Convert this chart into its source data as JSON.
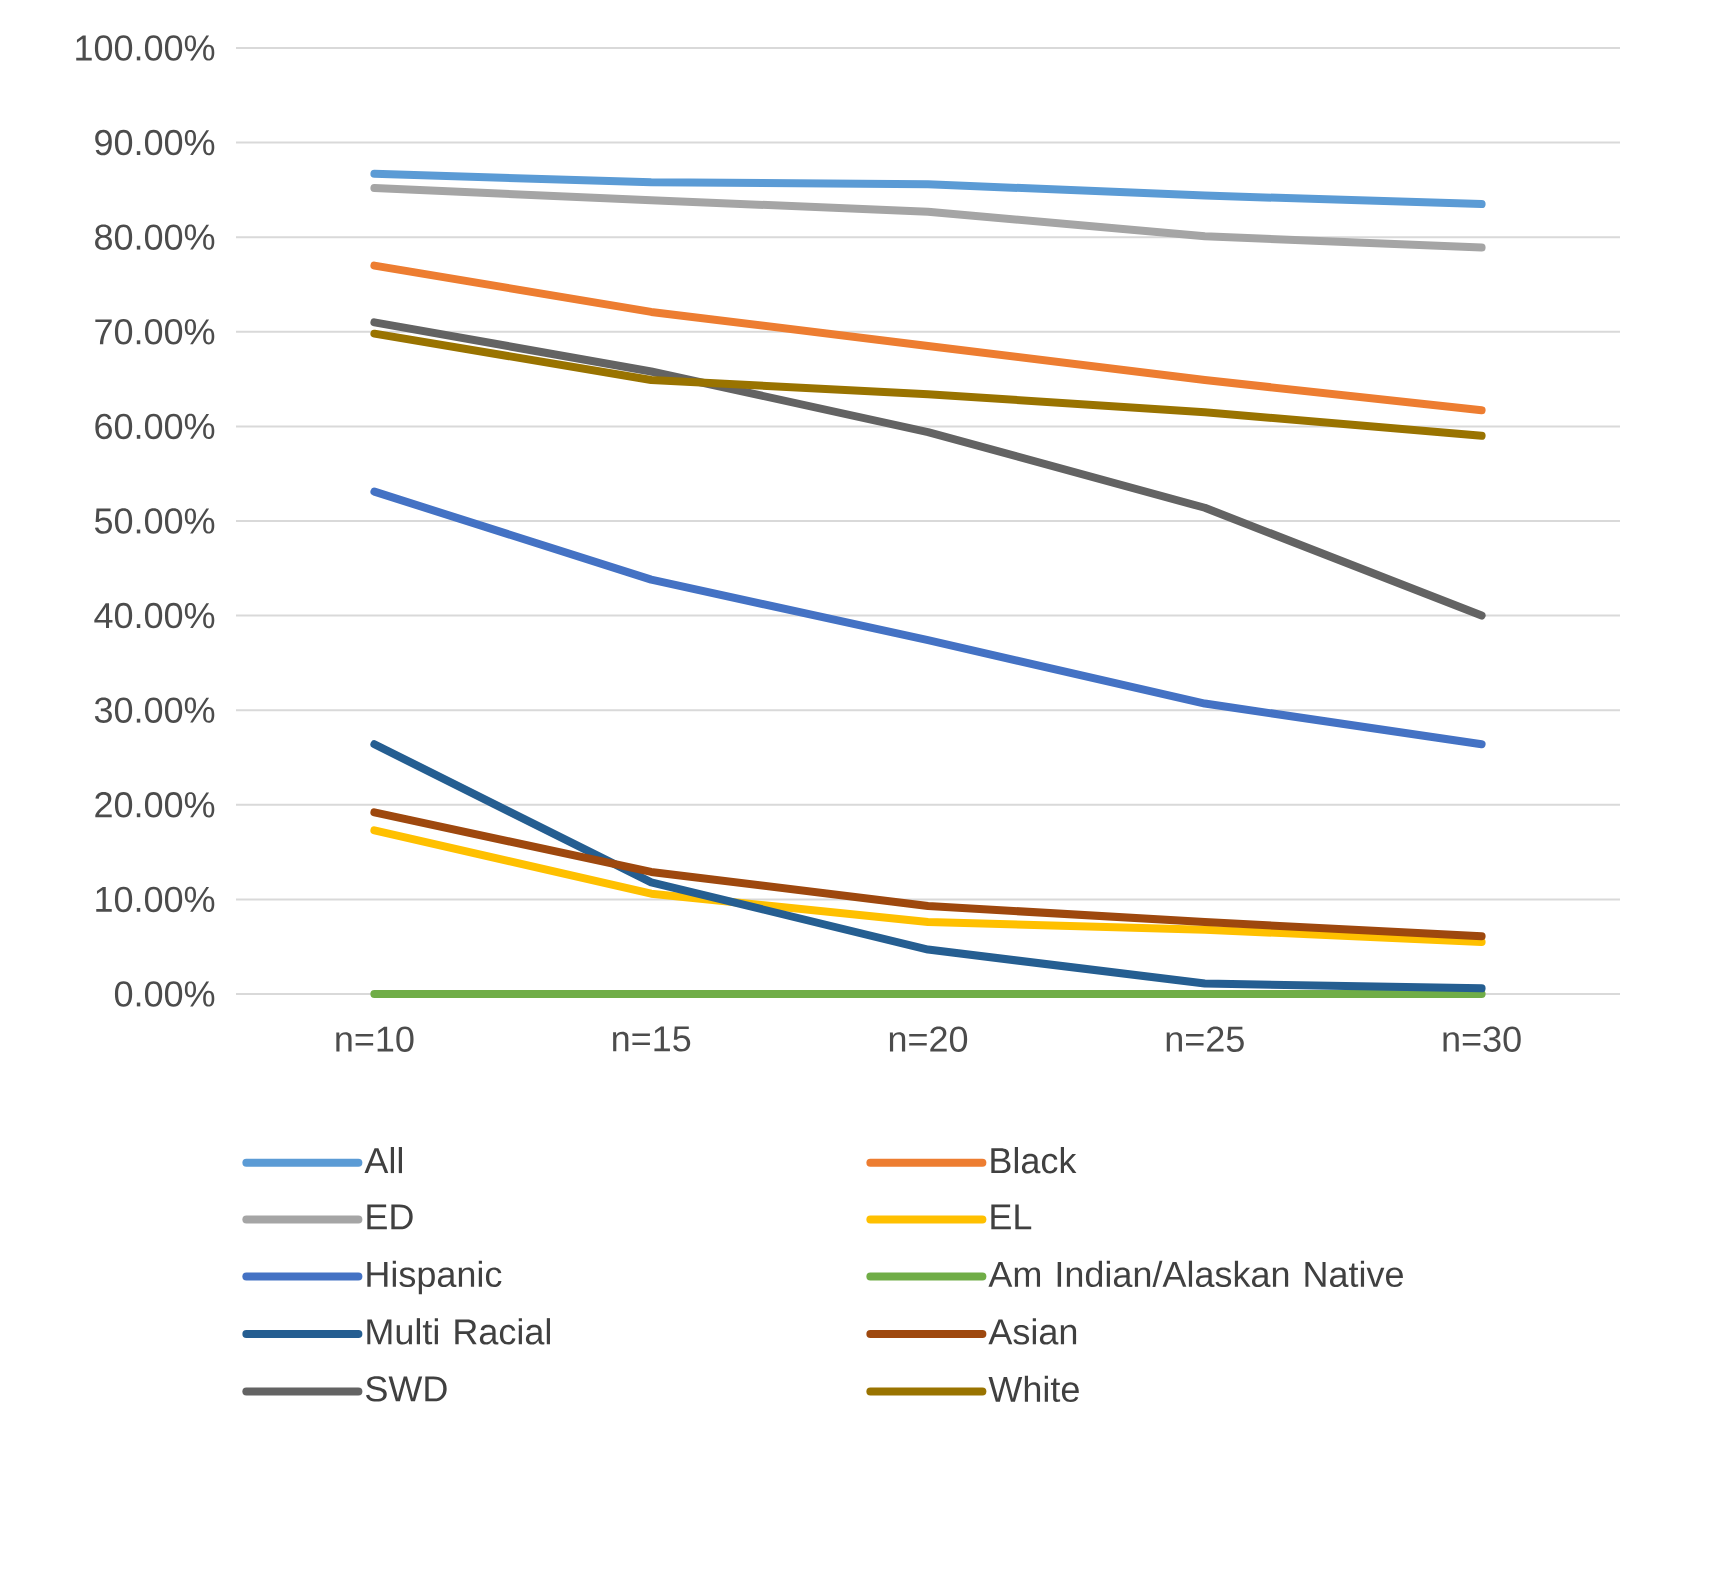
{
  "chart_data": {
    "type": "line",
    "categories": [
      "n=10",
      "n=15",
      "n=20",
      "n=25",
      "n=30"
    ],
    "series": [
      {
        "name": "All",
        "color": "#5b9bd5",
        "values": [
          86.7,
          85.8,
          85.6,
          84.4,
          83.5
        ]
      },
      {
        "name": "Black",
        "color": "#ed7d31",
        "values": [
          77.0,
          72.1,
          68.5,
          64.9,
          61.7
        ]
      },
      {
        "name": "ED",
        "color": "#a5a5a5",
        "values": [
          85.2,
          83.9,
          82.7,
          80.1,
          78.9
        ]
      },
      {
        "name": "EL",
        "color": "#ffc000",
        "values": [
          17.3,
          10.6,
          7.6,
          6.8,
          5.5
        ]
      },
      {
        "name": "Hispanic",
        "color": "#4472c4",
        "values": [
          53.1,
          43.8,
          37.4,
          30.7,
          26.4
        ]
      },
      {
        "name": "Am Indian/Alaskan Native",
        "color": "#70ad47",
        "values": [
          0,
          0,
          0,
          0,
          0
        ]
      },
      {
        "name": "Multi Racial",
        "color": "#255e91",
        "values": [
          26.4,
          11.8,
          4.7,
          1.1,
          0.6
        ]
      },
      {
        "name": "Asian",
        "color": "#9e480e",
        "values": [
          19.2,
          12.9,
          9.3,
          7.6,
          6.1
        ]
      },
      {
        "name": "SWD",
        "color": "#636363",
        "values": [
          71.0,
          65.8,
          59.4,
          51.4,
          40.0
        ]
      },
      {
        "name": "White",
        "color": "#997300",
        "values": [
          69.8,
          64.9,
          63.4,
          61.5,
          59.0
        ]
      }
    ],
    "ylim": [
      0,
      100
    ],
    "yticks": [
      {
        "value": 0,
        "label": "0.00%"
      },
      {
        "value": 10,
        "label": "10.00%"
      },
      {
        "value": 20,
        "label": "20.00%"
      },
      {
        "value": 30,
        "label": "30.00%"
      },
      {
        "value": 40,
        "label": "40.00%"
      },
      {
        "value": 50,
        "label": "50.00%"
      },
      {
        "value": 60,
        "label": "60.00%"
      },
      {
        "value": 70,
        "label": "70.00%"
      },
      {
        "value": 80,
        "label": "80.00%"
      },
      {
        "value": 90,
        "label": "90.00%"
      },
      {
        "value": 100,
        "label": "100.00%"
      }
    ],
    "grid": "y",
    "legend": "bottom",
    "marker": "none",
    "line_style": "solid"
  }
}
